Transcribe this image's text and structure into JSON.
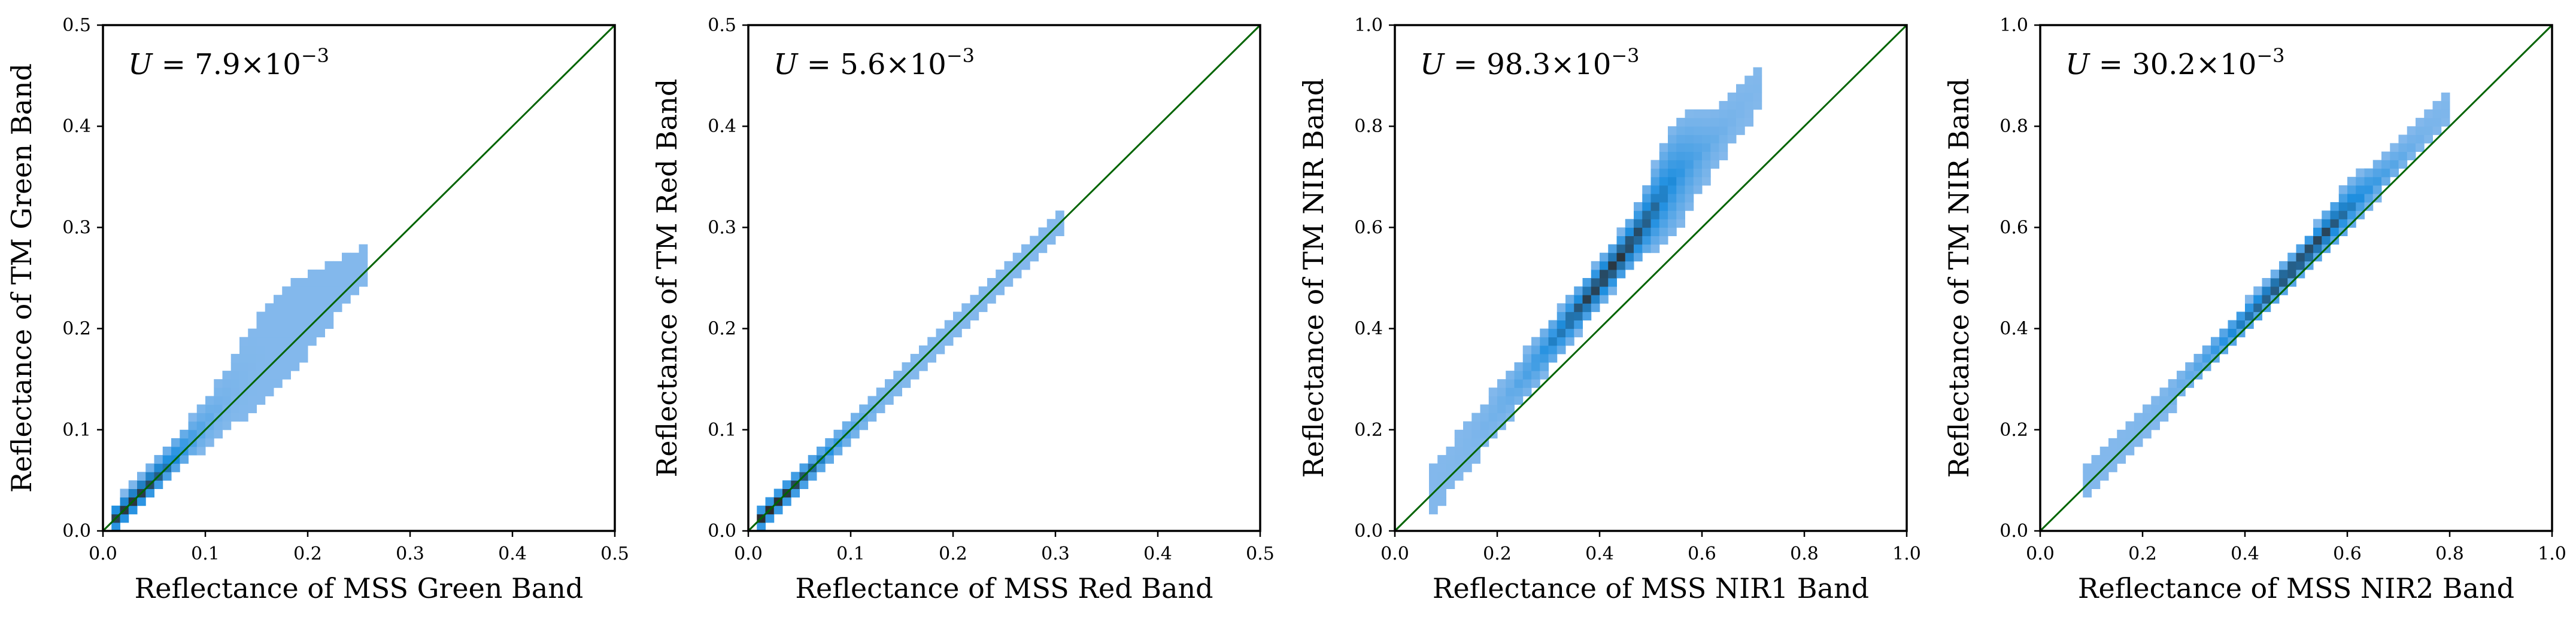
{
  "chart_data": [
    {
      "type": "heatmap",
      "title": "",
      "xlabel": "Reflectance of MSS Green Band",
      "ylabel": "Reflectance of TM Green Band",
      "xlim": [
        0,
        0.5
      ],
      "ylim": [
        0,
        0.5
      ],
      "xticks": [
        "0.0",
        "0.1",
        "0.2",
        "0.3",
        "0.4",
        "0.5"
      ],
      "yticks": [
        "0.0",
        "0.1",
        "0.2",
        "0.3",
        "0.4",
        "0.5"
      ],
      "annotation": {
        "symbol": "U",
        "text": " = 7.9×10",
        "exponent": "−3"
      },
      "reference_line": "y = x",
      "density_profile": {
        "x_range": [
          0.01,
          0.26
        ],
        "slope": 1.03,
        "offset": 0.0,
        "width": 0.012,
        "bulge_at": 0.17,
        "bulge": 0.03,
        "peak_at": 0.03
      }
    },
    {
      "type": "heatmap",
      "title": "",
      "xlabel": "Reflectance of MSS Red Band",
      "ylabel": "Reflectance of TM Red Band",
      "xlim": [
        0,
        0.5
      ],
      "ylim": [
        0,
        0.5
      ],
      "xticks": [
        "0.0",
        "0.1",
        "0.2",
        "0.3",
        "0.4",
        "0.5"
      ],
      "yticks": [
        "0.0",
        "0.1",
        "0.2",
        "0.3",
        "0.4",
        "0.5"
      ],
      "annotation": {
        "symbol": "U",
        "text": " = 5.6×10",
        "exponent": "−3"
      },
      "reference_line": "y = x",
      "density_profile": {
        "x_range": [
          0.01,
          0.31
        ],
        "slope": 1.0,
        "offset": 0.0,
        "width": 0.009,
        "bulge_at": 0.2,
        "bulge": 0.0,
        "peak_at": 0.02
      }
    },
    {
      "type": "heatmap",
      "title": "",
      "xlabel": "Reflectance of MSS NIR1 Band",
      "ylabel": "Reflectance of TM NIR Band",
      "xlim": [
        0,
        1.0
      ],
      "ylim": [
        0,
        1.0
      ],
      "xticks": [
        "0.0",
        "0.2",
        "0.4",
        "0.6",
        "0.8",
        "1.0"
      ],
      "yticks": [
        "0.0",
        "0.2",
        "0.4",
        "0.6",
        "0.8",
        "1.0"
      ],
      "annotation": {
        "symbol": "U",
        "text": " = 98.3×10",
        "exponent": "−3"
      },
      "reference_line": "y = x",
      "density_profile": {
        "x_range": [
          0.06,
          0.72
        ],
        "slope": 1.25,
        "offset": -0.01,
        "width": 0.04,
        "bulge_at": 0.55,
        "bulge": 0.06,
        "peak_at": 0.42
      }
    },
    {
      "type": "heatmap",
      "title": "",
      "xlabel": "Reflectance of MSS NIR2 Band",
      "ylabel": "Reflectance of TM NIR Band",
      "xlim": [
        0,
        1.0
      ],
      "ylim": [
        0,
        1.0
      ],
      "xticks": [
        "0.0",
        "0.2",
        "0.4",
        "0.6",
        "0.8",
        "1.0"
      ],
      "yticks": [
        "0.0",
        "0.2",
        "0.4",
        "0.6",
        "0.8",
        "1.0"
      ],
      "annotation": {
        "symbol": "U",
        "text": " = 30.2×10",
        "exponent": "−3"
      },
      "reference_line": "y = x",
      "density_profile": {
        "x_range": [
          0.09,
          0.8
        ],
        "slope": 1.05,
        "offset": 0.0,
        "width": 0.022,
        "bulge_at": 0.6,
        "bulge": 0.02,
        "peak_at": 0.5
      }
    }
  ],
  "colors": {
    "reference_line": "#006400",
    "density_low": "#a9c8f0",
    "density_mid": "#1f8fe0",
    "density_high": "#2b2b2b",
    "axes": "#000000"
  }
}
